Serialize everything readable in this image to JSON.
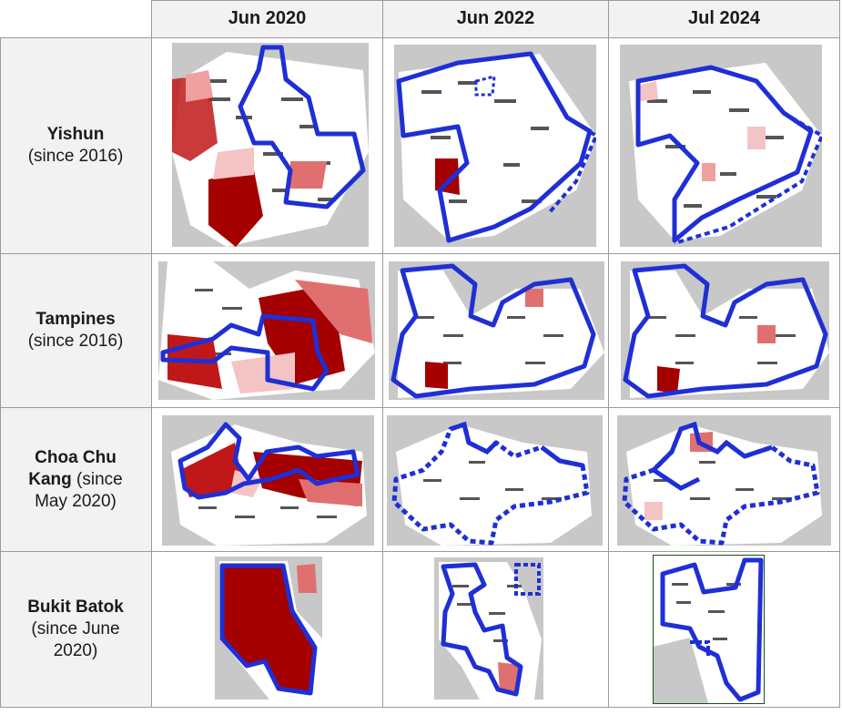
{
  "columns": [
    "Jun 2020",
    "Jun 2022",
    "Jul 2024"
  ],
  "rows": [
    {
      "name": "Yishun",
      "sub": "(since 2016)"
    },
    {
      "name": "Tampines",
      "sub": "(since 2016)"
    },
    {
      "name": "Choa Chu Kang",
      "sub": "(since May 2020)"
    },
    {
      "name": "Bukit Batok",
      "sub": "(since June 2020)"
    }
  ],
  "colors": {
    "outline": "#1f2fd6",
    "hot": "#a40000",
    "warm": "#e07070",
    "light": "#f4c4c4",
    "bg": "#c8c8c8"
  }
}
